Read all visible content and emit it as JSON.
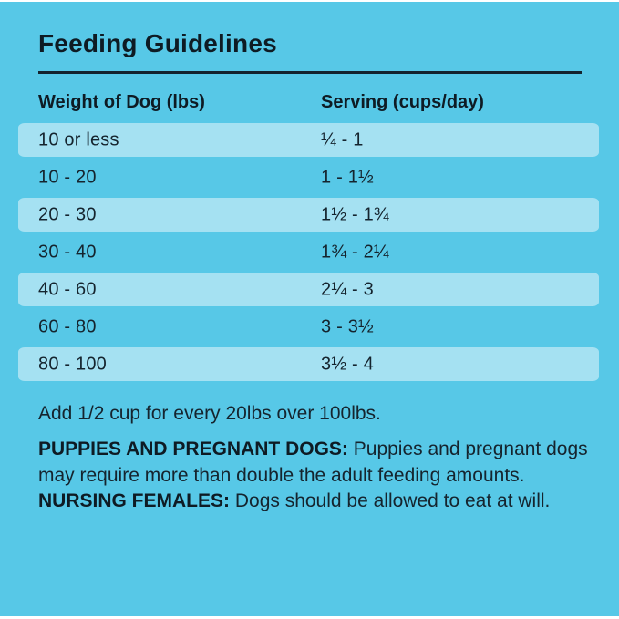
{
  "colors": {
    "background": "#57C8E7",
    "row_highlight": "#A5E1F2",
    "text": "#15242E",
    "title_text": "#0E1B24",
    "rule": "#14232E",
    "edge": "#FFFFFF"
  },
  "title": "Feeding Guidelines",
  "table": {
    "columns": [
      "Weight of Dog (lbs)",
      "Serving (cups/day)"
    ],
    "rows": [
      {
        "weight": "10 or less",
        "serving": "¼ - 1",
        "highlighted": true
      },
      {
        "weight": "10 - 20",
        "serving": "1 - 1½",
        "highlighted": false
      },
      {
        "weight": "20 - 30",
        "serving": "1½ - 1¾",
        "highlighted": true
      },
      {
        "weight": "30 - 40",
        "serving": "1¾ - 2¼",
        "highlighted": false
      },
      {
        "weight": "40 - 60",
        "serving": "2¼ - 3",
        "highlighted": true
      },
      {
        "weight": "60 - 80",
        "serving": "3 - 3½",
        "highlighted": false
      },
      {
        "weight": "80 - 100",
        "serving": "3½ - 4",
        "highlighted": true
      }
    ]
  },
  "notes": {
    "over_100": "Add 1/2 cup for every 20lbs over 100lbs.",
    "puppies_label": "PUPPIES AND PREGNANT DOGS: ",
    "puppies_text": "Puppies and pregnant dogs may require more than double the adult feeding amounts. ",
    "nursing_label": "NURSING FEMALES: ",
    "nursing_text": "Dogs should be allowed to eat at will."
  }
}
